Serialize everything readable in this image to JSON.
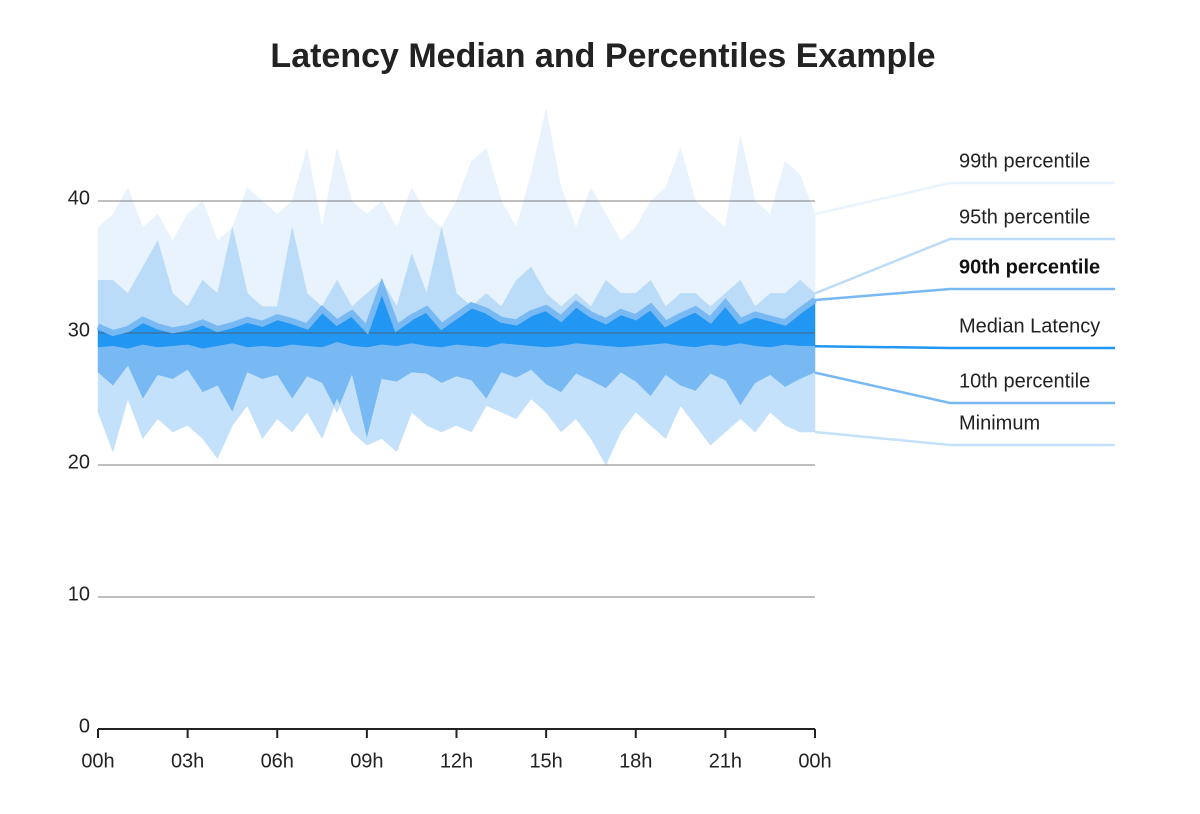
{
  "chart_data": {
    "type": "band",
    "title": "Latency Median and Percentiles Example",
    "x": [
      0,
      0.5,
      1,
      1.5,
      2,
      2.5,
      3,
      3.5,
      4,
      4.5,
      5,
      5.5,
      6,
      6.5,
      7,
      7.5,
      8,
      8.5,
      9,
      9.5,
      10,
      10.5,
      11,
      11.5,
      12,
      12.5,
      13,
      13.5,
      14,
      14.5,
      15,
      15.5,
      16,
      16.5,
      17,
      17.5,
      18,
      18.5,
      19,
      19.5,
      20,
      20.5,
      21,
      21.5,
      22,
      22.5,
      23,
      23.5,
      24
    ],
    "xlim": [
      0,
      24
    ],
    "xticks": [
      {
        "value": 0,
        "label": "00h"
      },
      {
        "value": 3,
        "label": "03h"
      },
      {
        "value": 6,
        "label": "06h"
      },
      {
        "value": 9,
        "label": "09h"
      },
      {
        "value": 12,
        "label": "12h"
      },
      {
        "value": 15,
        "label": "15h"
      },
      {
        "value": 18,
        "label": "18h"
      },
      {
        "value": 21,
        "label": "21h"
      },
      {
        "value": 24,
        "label": "00h"
      }
    ],
    "ylim": [
      0,
      40
    ],
    "yticks": [
      0,
      10,
      20,
      30,
      40
    ],
    "grid": true,
    "series": [
      {
        "name": "99th percentile",
        "color": "#e8f3fd",
        "values": [
          38,
          39,
          41,
          38,
          39,
          37,
          39,
          40,
          37,
          38,
          41,
          40,
          39,
          40,
          44,
          38,
          44,
          40,
          39,
          40,
          38,
          41,
          39,
          38,
          40,
          43,
          44,
          40,
          38,
          42,
          47,
          41,
          38,
          41,
          39,
          37,
          38,
          40,
          41,
          44,
          40,
          39,
          38,
          45,
          40,
          39,
          43,
          42,
          39
        ]
      },
      {
        "name": "95th percentile",
        "color": "#bbdcf9",
        "values": [
          34,
          34,
          33,
          35,
          37,
          33,
          32,
          34,
          33,
          38,
          33,
          32,
          32,
          38,
          33,
          32,
          34,
          32,
          33,
          34,
          32,
          36,
          33,
          38,
          33,
          32,
          33,
          32,
          34,
          35,
          33,
          32,
          33,
          32,
          34,
          33,
          33,
          34,
          32,
          33,
          33,
          32,
          33,
          34,
          32,
          33,
          33,
          34,
          33
        ]
      },
      {
        "name": "90th percentile",
        "color": "#78b9f4",
        "values": [
          30.5,
          30,
          30.3,
          31,
          30.5,
          30.2,
          30.4,
          30.8,
          30.3,
          30.6,
          31,
          30.7,
          31.2,
          30.9,
          30.5,
          31.8,
          30.8,
          31.5,
          30.3,
          33.5,
          30.4,
          31.2,
          31.8,
          30.5,
          31.3,
          32.1,
          31.7,
          31,
          30.8,
          31.5,
          31.9,
          31.1,
          32.2,
          31.4,
          30.9,
          31.6,
          31.2,
          32,
          30.7,
          31.3,
          31.8,
          31,
          32.3,
          30.9,
          31.4,
          31.1,
          30.8,
          31.7,
          32.5
        ]
      },
      {
        "name": "Median Latency",
        "color": "#2196f3",
        "values": [
          28.9,
          29,
          28.8,
          29.1,
          28.9,
          29,
          29.1,
          28.8,
          29,
          29.2,
          28.9,
          29,
          28.9,
          29.1,
          29,
          28.9,
          29.3,
          29,
          28.9,
          29.1,
          29,
          29.2,
          29,
          28.9,
          29.1,
          29,
          28.9,
          29.2,
          29.1,
          29,
          28.9,
          29,
          29.2,
          29.1,
          29,
          28.9,
          29,
          29.1,
          29.2,
          29,
          28.9,
          29.1,
          29,
          29.2,
          29,
          28.9,
          29.1,
          29,
          29
        ]
      },
      {
        "name": "10th percentile",
        "color": "#78b9f4",
        "values": [
          27,
          26,
          27.5,
          25,
          26.8,
          26.5,
          27.2,
          25.5,
          26,
          24,
          27,
          26.5,
          26.8,
          25,
          26.7,
          26.2,
          24,
          26.8,
          22,
          26.5,
          26.3,
          27,
          26.9,
          26.2,
          26.7,
          26.4,
          25,
          27,
          26.6,
          27.2,
          26.1,
          25.5,
          26.9,
          26.4,
          25.8,
          27,
          26.3,
          25.2,
          26.8,
          26,
          25.6,
          26.9,
          26.4,
          24.5,
          26.2,
          26.8,
          25.9,
          26.5,
          27
        ]
      },
      {
        "name": "Minimum",
        "color": "#c4e1fb",
        "values": [
          24,
          21,
          25,
          22,
          23.5,
          22.5,
          23,
          22,
          20.5,
          23,
          24.5,
          22,
          23.5,
          22.5,
          24,
          22,
          25,
          22.5,
          21.5,
          22,
          21,
          24,
          23,
          22.5,
          23,
          22.5,
          24.5,
          24,
          23.5,
          25,
          24,
          22.5,
          23.5,
          22,
          20,
          22.5,
          24,
          23,
          22,
          24.5,
          23,
          21.5,
          22.5,
          23.5,
          22.5,
          24,
          23,
          22.5,
          22.5
        ]
      }
    ]
  }
}
